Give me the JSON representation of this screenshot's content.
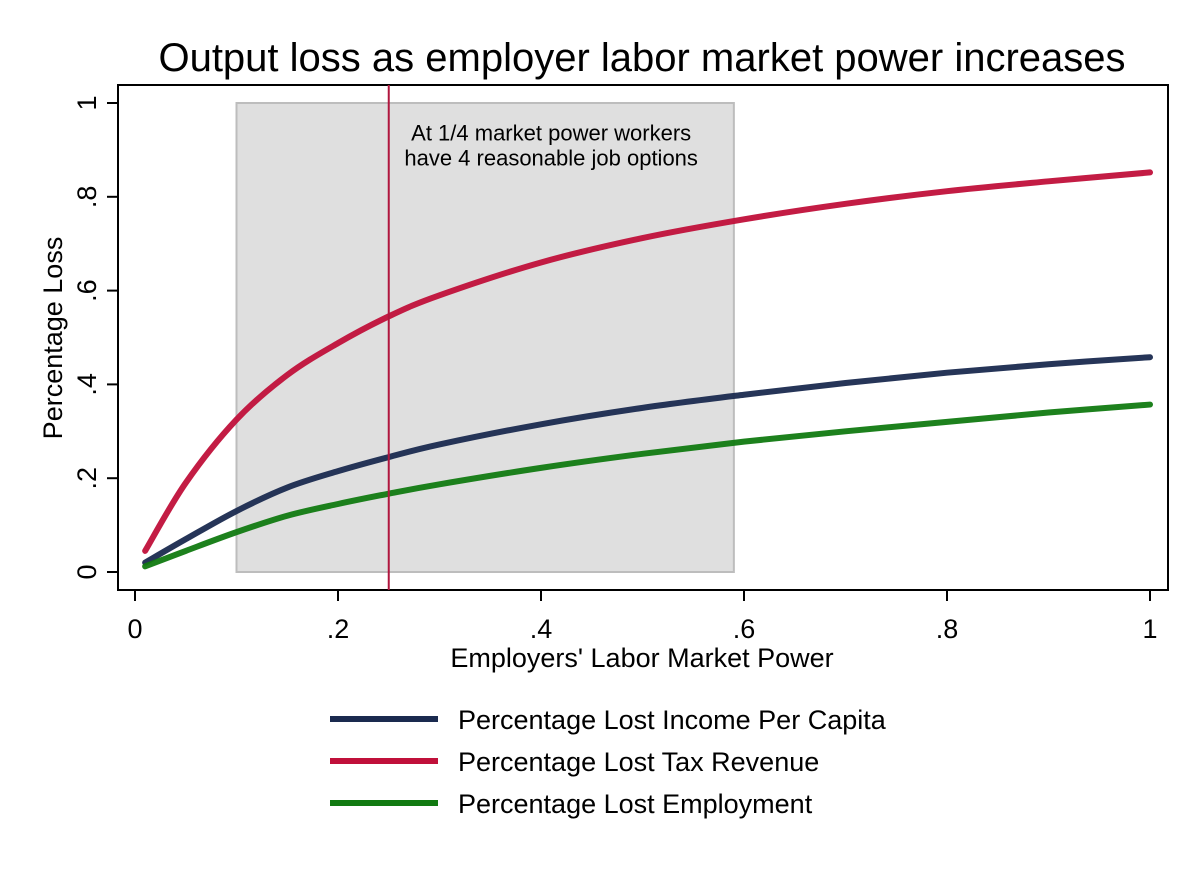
{
  "chart_data": {
    "type": "line",
    "title": "Output loss as employer labor market power increases",
    "xlabel": "Employers' Labor Market Power",
    "ylabel": "Percentage Loss",
    "xlim": [
      0,
      1
    ],
    "ylim": [
      0,
      1
    ],
    "x_ticks": [
      0,
      0.2,
      0.4,
      0.6,
      0.8,
      1
    ],
    "x_tick_labels": [
      "0",
      ".2",
      ".4",
      ".6",
      ".8",
      "1"
    ],
    "y_ticks": [
      0,
      0.2,
      0.4,
      0.6,
      0.8,
      1
    ],
    "y_tick_labels": [
      "0",
      ".2",
      ".4",
      ".6",
      ".8",
      "1"
    ],
    "grid": false,
    "legend_position": "bottom",
    "x": [
      0.01,
      0.05,
      0.1,
      0.15,
      0.2,
      0.25,
      0.3,
      0.4,
      0.5,
      0.6,
      0.7,
      0.8,
      0.9,
      1.0
    ],
    "series": [
      {
        "name": "Percentage Lost Income Per Capita",
        "color": "#1a2a4f",
        "values": [
          0.02,
          0.07,
          0.13,
          0.18,
          0.215,
          0.245,
          0.272,
          0.315,
          0.35,
          0.378,
          0.403,
          0.425,
          0.443,
          0.458
        ]
      },
      {
        "name": "Percentage Lost Tax Revenue",
        "color": "#c0103a",
        "values": [
          0.045,
          0.19,
          0.325,
          0.42,
          0.488,
          0.545,
          0.59,
          0.66,
          0.712,
          0.752,
          0.785,
          0.812,
          0.833,
          0.852
        ]
      },
      {
        "name": "Percentage Lost Employment",
        "color": "#117a11",
        "values": [
          0.012,
          0.045,
          0.085,
          0.12,
          0.145,
          0.167,
          0.187,
          0.222,
          0.252,
          0.278,
          0.3,
          0.32,
          0.34,
          0.357
        ]
      }
    ],
    "shaded_region": {
      "x_start": 0.1,
      "x_end": 0.59,
      "y_start": 0,
      "y_end": 1,
      "color": "#d0d0d0"
    },
    "vertical_line": {
      "x": 0.25,
      "color": "#b0163e"
    },
    "annotation": {
      "lines": [
        "At 1/4 market power workers",
        "have 4 reasonable job options"
      ],
      "x": 0.41,
      "y": 0.92
    }
  }
}
